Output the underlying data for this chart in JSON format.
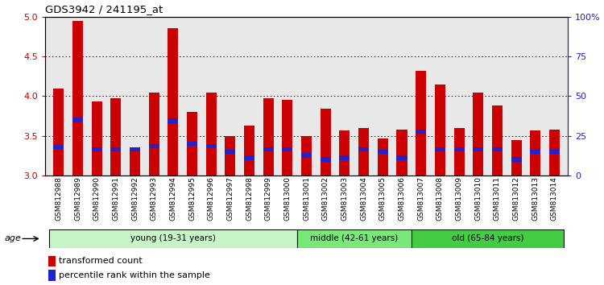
{
  "title": "GDS3942 / 241195_at",
  "samples": [
    "GSM812988",
    "GSM812989",
    "GSM812990",
    "GSM812991",
    "GSM812992",
    "GSM812993",
    "GSM812994",
    "GSM812995",
    "GSM812996",
    "GSM812997",
    "GSM812998",
    "GSM812999",
    "GSM813000",
    "GSM813001",
    "GSM813002",
    "GSM813003",
    "GSM813004",
    "GSM813005",
    "GSM813006",
    "GSM813007",
    "GSM813008",
    "GSM813009",
    "GSM813010",
    "GSM813011",
    "GSM813012",
    "GSM813013",
    "GSM813014"
  ],
  "red_values": [
    4.1,
    4.95,
    3.93,
    3.97,
    3.35,
    4.05,
    4.86,
    3.8,
    4.05,
    3.5,
    3.63,
    3.97,
    3.95,
    3.5,
    3.84,
    3.57,
    3.6,
    3.47,
    3.58,
    4.32,
    4.15,
    3.6,
    4.05,
    3.88,
    3.45,
    3.57,
    3.58
  ],
  "blue_values": [
    3.36,
    3.7,
    3.33,
    3.33,
    3.33,
    3.37,
    3.69,
    3.4,
    3.37,
    3.3,
    3.22,
    3.33,
    3.33,
    3.25,
    3.2,
    3.22,
    3.33,
    3.3,
    3.22,
    3.55,
    3.33,
    3.33,
    3.33,
    3.33,
    3.2,
    3.3,
    3.3
  ],
  "group_labels": [
    "young (19-31 years)",
    "middle (42-61 years)",
    "old (65-84 years)"
  ],
  "group_ranges": [
    [
      0,
      13
    ],
    [
      13,
      19
    ],
    [
      19,
      27
    ]
  ],
  "group_colors": [
    "#c8f5c8",
    "#78e878",
    "#44cc44"
  ],
  "ylim": [
    3.0,
    5.0
  ],
  "y2lim": [
    0,
    100
  ],
  "y2ticks": [
    0,
    25,
    50,
    75,
    100
  ],
  "y2ticklabels": [
    "0",
    "25",
    "50",
    "75",
    "100%"
  ],
  "yticks": [
    3.0,
    3.5,
    4.0,
    4.5,
    5.0
  ],
  "red_color": "#cc0000",
  "blue_color": "#2222cc",
  "bar_width": 0.55,
  "legend_red": "transformed count",
  "legend_blue": "percentile rank within the sample",
  "ylabel_left_color": "#cc0000",
  "ylabel_right_color": "#2222bb",
  "age_label": "age",
  "bg_color": "#e8e8e8",
  "blue_bar_height": 0.055
}
